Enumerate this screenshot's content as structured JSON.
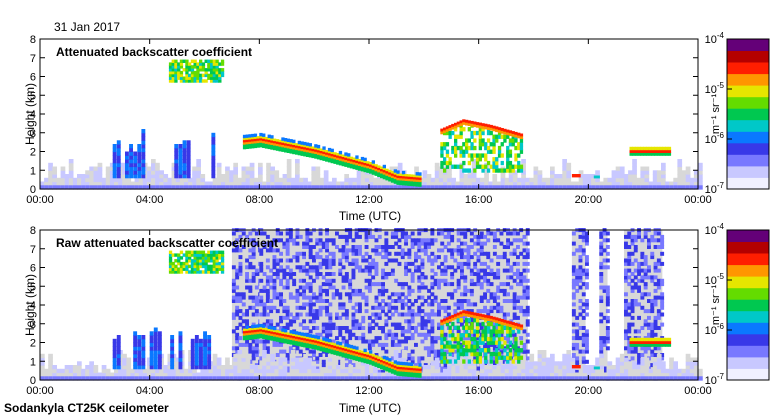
{
  "date_label": "31 Jan 2017",
  "footer_label": "Sodankyla CT25K ceilometer",
  "colors": {
    "background_clear": "#ffffff",
    "background_noise": "#d8d8d8",
    "colormap": [
      "#f0f0ff",
      "#c8c8ff",
      "#7878ff",
      "#3838e8",
      "#0a78ff",
      "#00c8c8",
      "#00c850",
      "#64dc00",
      "#e6e600",
      "#ff9600",
      "#ff1e00",
      "#b40000",
      "#640078"
    ]
  },
  "chart_data": [
    {
      "type": "heatmap",
      "title": "Attenuated backscatter coefficient",
      "xlabel": "Time (UTC)",
      "ylabel": "Height (km)",
      "x_ticks": [
        "00:00",
        "04:00",
        "08:00",
        "12:00",
        "16:00",
        "20:00",
        "00:00"
      ],
      "y_ticks": [
        "0",
        "1",
        "2",
        "3",
        "4",
        "5",
        "6",
        "7",
        "8"
      ],
      "xlim_hours": [
        0,
        24
      ],
      "ylim_km": [
        0,
        8
      ],
      "colorbar": {
        "label": "m⁻¹ sr⁻¹",
        "scale": "log",
        "range": [
          1e-07,
          0.0001
        ],
        "ticks": [
          {
            "base": "10",
            "exp": "-7"
          },
          {
            "base": "10",
            "exp": "-6"
          },
          {
            "base": "10",
            "exp": "-5"
          },
          {
            "base": "10",
            "exp": "-4"
          }
        ]
      },
      "features": {
        "cloud_layer_km": [
          [
            7.4,
            2.5
          ],
          [
            8,
            2.6
          ],
          [
            10,
            2.0
          ],
          [
            12,
            1.2
          ],
          [
            13,
            0.6
          ],
          [
            13.8,
            0.5
          ]
        ],
        "upper_cloud_km": [
          [
            14.6,
            3.1
          ],
          [
            15.4,
            3.6
          ],
          [
            16.4,
            3.3
          ],
          [
            17.6,
            2.8
          ]
        ],
        "high_patch": {
          "t": [
            4.7,
            6.6
          ],
          "h": [
            5.7,
            6.9
          ]
        },
        "late_cloud": {
          "t": [
            21.5,
            23.0
          ],
          "h": [
            1.8,
            2.3
          ]
        }
      }
    },
    {
      "type": "heatmap",
      "title": "Raw attenuated backscatter coefficient",
      "xlabel": "Time (UTC)",
      "ylabel": "Height (km)",
      "x_ticks": [
        "00:00",
        "04:00",
        "08:00",
        "12:00",
        "16:00",
        "20:00",
        "00:00"
      ],
      "y_ticks": [
        "0",
        "1",
        "2",
        "3",
        "4",
        "5",
        "6",
        "7",
        "8"
      ],
      "xlim_hours": [
        0,
        24
      ],
      "ylim_km": [
        0,
        8
      ],
      "colorbar": {
        "label": "m⁻¹ sr⁻¹",
        "scale": "log",
        "range": [
          1e-07,
          0.0001
        ],
        "ticks": [
          {
            "base": "10",
            "exp": "-7"
          },
          {
            "base": "10",
            "exp": "-6"
          },
          {
            "base": "10",
            "exp": "-5"
          },
          {
            "base": "10",
            "exp": "-4"
          }
        ]
      },
      "features": {
        "noise_bands_hours": [
          [
            7.0,
            8.0
          ],
          [
            8.0,
            17.8
          ],
          [
            19.4,
            19.9
          ],
          [
            20.4,
            20.7
          ],
          [
            21.3,
            22.7
          ]
        ],
        "cloud_layer_km": [
          [
            7.4,
            2.5
          ],
          [
            8,
            2.6
          ],
          [
            10,
            2.0
          ],
          [
            12,
            1.2
          ],
          [
            13,
            0.6
          ],
          [
            13.8,
            0.5
          ]
        ],
        "upper_cloud_km": [
          [
            14.6,
            3.1
          ],
          [
            15.4,
            3.6
          ],
          [
            16.4,
            3.3
          ],
          [
            17.6,
            2.8
          ]
        ],
        "high_patch": {
          "t": [
            4.7,
            6.6
          ],
          "h": [
            5.7,
            6.9
          ]
        },
        "late_cloud": {
          "t": [
            21.5,
            23.0
          ],
          "h": [
            1.8,
            2.3
          ]
        }
      }
    }
  ]
}
